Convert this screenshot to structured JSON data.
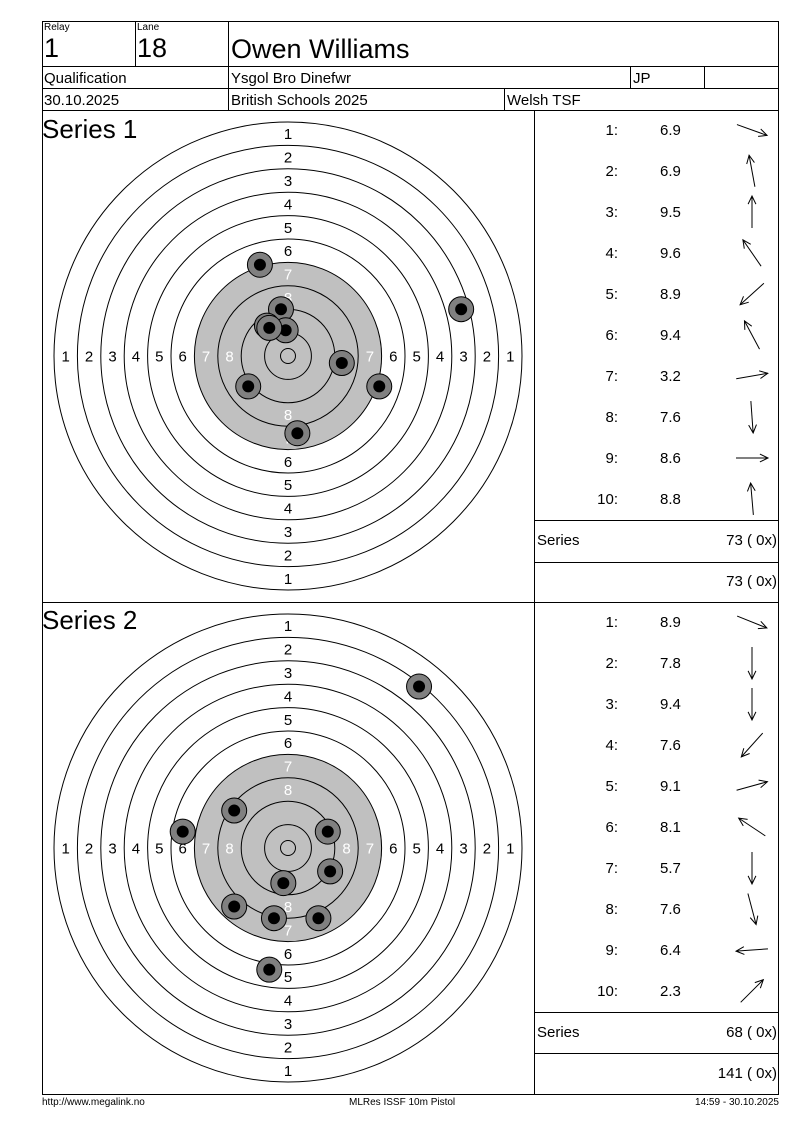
{
  "header": {
    "relay_label": "Relay",
    "relay_value": "1",
    "lane_label": "Lane",
    "lane_value": "18",
    "shooter_name": "Owen Williams",
    "event": "Qualification",
    "club": "Ysgol Bro Dinefwr",
    "class_code": "JP",
    "date": "30.10.2025",
    "competition": "British Schools 2025",
    "federation": "Welsh TSF"
  },
  "target": {
    "ring_labels": [
      "1",
      "2",
      "3",
      "4",
      "5",
      "6",
      "7",
      "8"
    ],
    "colors": {
      "black_area": "#c0c0c0",
      "shot_outer": "#808080",
      "shot_inner": "#000000"
    }
  },
  "series": [
    {
      "title": "Series 1",
      "shots": [
        {
          "n": "1:",
          "score": "6.9",
          "direction": "arrow-east-southeast-icon",
          "dx": 0.5,
          "dy": 0.18
        },
        {
          "n": "2:",
          "score": "6.9",
          "direction": "arrow-north-northwest-icon",
          "dx": -0.12,
          "dy": -0.65
        },
        {
          "n": "3:",
          "score": "9.5",
          "direction": "arrow-north-icon",
          "dx": 0.0,
          "dy": -0.72
        },
        {
          "n": "4:",
          "score": "9.6",
          "direction": "arrow-northwest-icon",
          "dx": -0.38,
          "dy": -0.55
        },
        {
          "n": "5:",
          "score": "8.9",
          "direction": "arrow-southwest-icon",
          "dx": -0.5,
          "dy": 0.45
        },
        {
          "n": "6:",
          "score": "9.4",
          "direction": "arrow-northwest-icon",
          "dx": -0.32,
          "dy": -0.6
        },
        {
          "n": "7:",
          "score": "3.2",
          "direction": "arrow-east-icon",
          "dx": 0.7,
          "dy": -0.12
        },
        {
          "n": "8:",
          "score": "7.6",
          "direction": "arrow-south-icon",
          "dx": 0.05,
          "dy": 0.7
        },
        {
          "n": "9:",
          "score": "8.6",
          "direction": "arrow-east-icon",
          "dx": 0.72,
          "dy": 0.0
        },
        {
          "n": "10:",
          "score": "8.8",
          "direction": "arrow-north-icon",
          "dx": -0.06,
          "dy": -0.7
        }
      ],
      "hits": [
        {
          "x": -1.2,
          "y": -3.9
        },
        {
          "x": 7.4,
          "y": -2.0
        },
        {
          "x": -0.3,
          "y": -2.0
        },
        {
          "x": -0.9,
          "y": -1.3
        },
        {
          "x": -1.7,
          "y": 1.3
        },
        {
          "x": -0.1,
          "y": -1.1
        },
        {
          "x": -0.8,
          "y": -1.2
        },
        {
          "x": 0.4,
          "y": 3.3
        },
        {
          "x": 3.9,
          "y": 1.3
        },
        {
          "x": 2.3,
          "y": 0.3
        }
      ],
      "series_label": "Series",
      "series_total": "73 ( 0x)",
      "running_total": "73 ( 0x)"
    },
    {
      "title": "Series 2",
      "shots": [
        {
          "n": "1:",
          "score": "8.9",
          "direction": "arrow-east-southeast-icon",
          "dx": 0.55,
          "dy": 0.22
        },
        {
          "n": "2:",
          "score": "7.8",
          "direction": "arrow-south-icon",
          "dx": 0.0,
          "dy": 0.72
        },
        {
          "n": "3:",
          "score": "9.4",
          "direction": "arrow-south-icon",
          "dx": 0.0,
          "dy": 0.72
        },
        {
          "n": "4:",
          "score": "7.6",
          "direction": "arrow-southwest-icon",
          "dx": -0.45,
          "dy": 0.5
        },
        {
          "n": "5:",
          "score": "9.1",
          "direction": "arrow-east-northeast-icon",
          "dx": 0.65,
          "dy": -0.18
        },
        {
          "n": "6:",
          "score": "8.1",
          "direction": "arrow-northwest-icon",
          "dx": -0.6,
          "dy": -0.4
        },
        {
          "n": "7:",
          "score": "5.7",
          "direction": "arrow-south-icon",
          "dx": 0.0,
          "dy": 0.7
        },
        {
          "n": "8:",
          "score": "7.6",
          "direction": "arrow-south-southeast-icon",
          "dx": 0.18,
          "dy": 0.68
        },
        {
          "n": "9:",
          "score": "6.4",
          "direction": "arrow-west-icon",
          "dx": -0.7,
          "dy": 0.05
        },
        {
          "n": "10:",
          "score": "2.3",
          "direction": "arrow-northeast-icon",
          "dx": 0.5,
          "dy": -0.5
        }
      ],
      "hits": [
        {
          "x": 5.6,
          "y": -6.9
        },
        {
          "x": -2.3,
          "y": -1.6
        },
        {
          "x": 1.7,
          "y": -0.7
        },
        {
          "x": -4.5,
          "y": -0.7
        },
        {
          "x": 1.8,
          "y": 1.0
        },
        {
          "x": -0.2,
          "y": 1.5
        },
        {
          "x": -2.3,
          "y": 2.5
        },
        {
          "x": -0.6,
          "y": 3.0
        },
        {
          "x": 1.3,
          "y": 3.0
        },
        {
          "x": -0.8,
          "y": 5.2
        }
      ],
      "series_label": "Series",
      "series_total": "68 ( 0x)",
      "running_total": "141 ( 0x)"
    }
  ],
  "footer": {
    "website": "http://www.megalink.no",
    "program": "MLRes ISSF 10m Pistol",
    "printed": "14:59 - 30.10.2025"
  }
}
